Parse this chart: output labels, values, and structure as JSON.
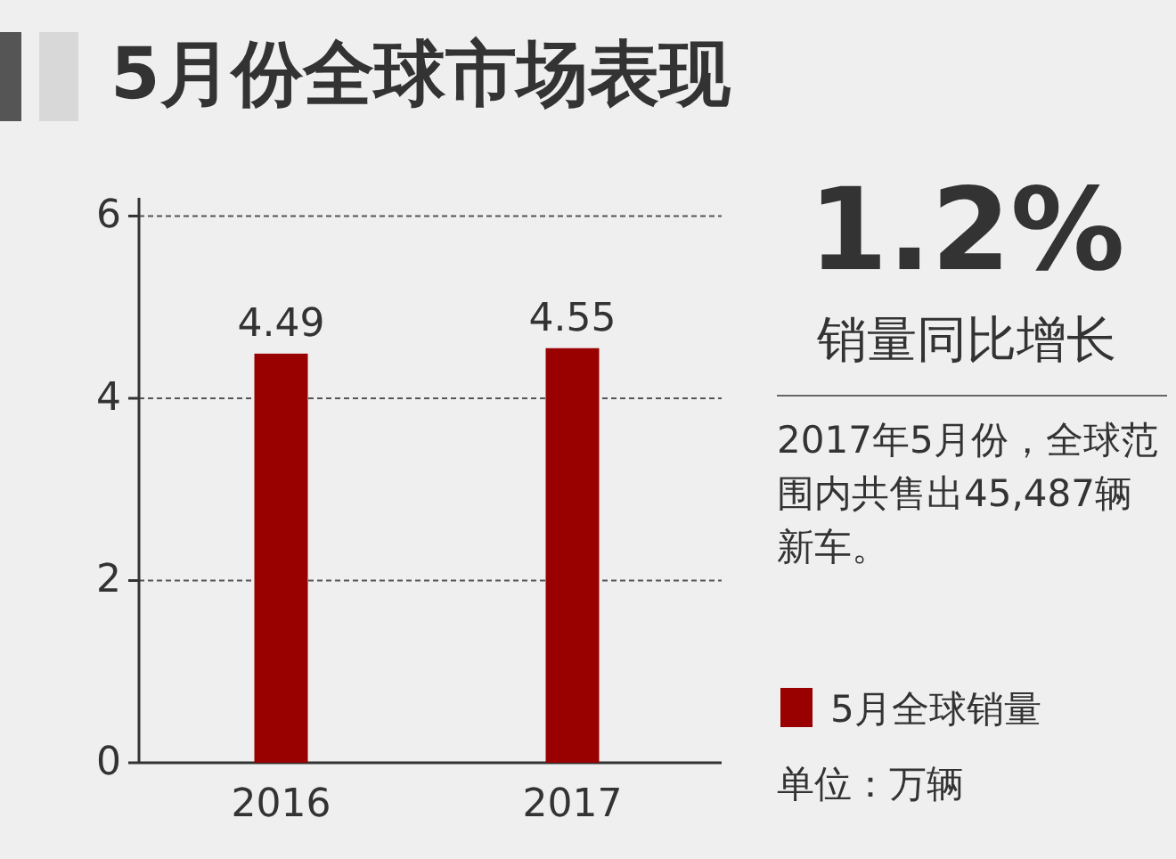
{
  "chart_data": {
    "type": "bar",
    "title": "5月份全球市场表现",
    "categories": [
      "2016",
      "2017"
    ],
    "series": [
      {
        "name": "5月全球销量",
        "color": "#990000",
        "values": [
          4.49,
          4.55
        ]
      }
    ],
    "ylim": [
      0,
      6.2
    ],
    "yticks": [
      0,
      2,
      4,
      6
    ],
    "grid": "y",
    "data_labels": true,
    "legend": "right",
    "annotations": [
      "1.2%",
      "销量同比增长",
      "2017年5月份，全球范围内共售出45,487辆新车。",
      "单位：万辆"
    ]
  }
}
